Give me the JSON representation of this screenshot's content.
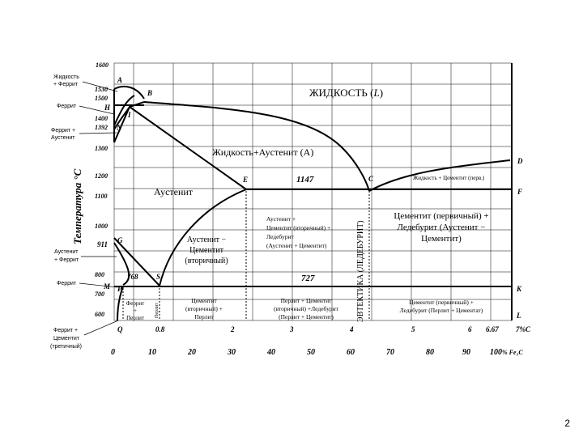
{
  "region_labels": {
    "liquid": "ЖИДКОСТЬ (",
    "liquid_L": "L",
    "liquid_close": ")",
    "liquid_austenite": "Жидкость+Аустенит (А)",
    "austenite": "Аустенит",
    "liquid_cementite": "Жидкость + Цементит (перв.)",
    "cem_ledeburite": [
      "Цементит (первичный) +",
      "Ледебурит (Аустенит −",
      "Цементит)"
    ],
    "aus_cem_sec": [
      "Аустенит −",
      "Цементит",
      "(вторичный)"
    ],
    "aus_cem_led": [
      "Аустенит +",
      "Цементит (вторичный) +",
      "Ледебурит",
      "(Аустенит + Цементит)"
    ],
    "eutectic_vertical": "ЭВТЕКТИКА (ЛЕДЕБУРИТ)",
    "ferrite_perlite": [
      "Феррит",
      "+",
      "Перлит"
    ],
    "perlite_vertical": "Перлит",
    "cem_perlite": [
      "Цементит",
      "(вторичный) +",
      "Перлит"
    ],
    "perlite_cem_led": [
      "Перлит + Цементит",
      "(вторичный) +Ледебурит",
      "(Перлит + Цементит)"
    ],
    "cem_led_perlite": [
      "Цементит (первичный) +",
      "Ледебурит (Перлит + Цементат)"
    ]
  },
  "temp_values": {
    "t1147": "1147",
    "t727": "727",
    "t768": "768",
    "t911": "911"
  },
  "point_letters": {
    "A": "A",
    "B": "B",
    "H": "H",
    "N": "N",
    "I": "I",
    "E": "E",
    "C": "C",
    "D": "D",
    "F": "F",
    "G": "G",
    "M": "M",
    "P": "P",
    "S": "S",
    "K": "K",
    "L": "L",
    "Q": "Q"
  },
  "y_axis": {
    "title": "Температура °C",
    "ticks": [
      "1600",
      "1530",
      "1500",
      "1400",
      "1392",
      "1300",
      "1200",
      "1100",
      "1000",
      "911",
      "800",
      "700",
      "600"
    ]
  },
  "carbon_axis": {
    "ticks": [
      "0.8",
      "2",
      "3",
      "4",
      "5",
      "6",
      "6.67"
    ],
    "unit": "%C",
    "seven": "7"
  },
  "fe3c_axis": {
    "ticks": [
      "0",
      "10",
      "20",
      "30",
      "40",
      "50",
      "60",
      "70",
      "80",
      "90",
      "100"
    ],
    "unit": "% Fe₃C"
  },
  "left_legend": {
    "liquid_ferrite": [
      "Жидкость",
      "+ Феррит"
    ],
    "ferrite1": "Феррит",
    "ferrite_austenite": [
      "Феррит +",
      "Аустенит"
    ],
    "austenite_ferrite": [
      "Аустенит",
      "+ Феррит"
    ],
    "ferrite2": "Феррит",
    "ferrite_cementite": [
      "Феррит +",
      "Цементит",
      "(третичный)"
    ]
  },
  "page_number": "2"
}
